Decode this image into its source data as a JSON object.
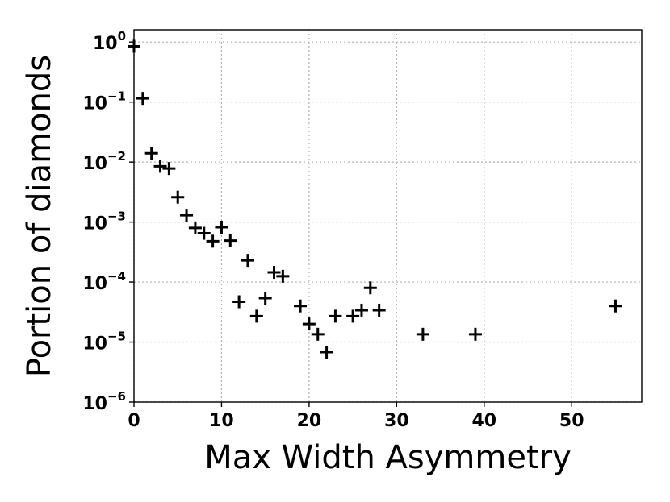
{
  "chart_data": {
    "type": "scatter",
    "title": "",
    "xlabel": "Max Width Asymmetry",
    "ylabel": "Portion of diamonds",
    "xlim": [
      0,
      58
    ],
    "ylim": [
      1e-06,
      1.6
    ],
    "yscale": "log",
    "grid": true,
    "marker": "+",
    "marker_color": "#000000",
    "x_ticks": [
      {
        "value": 0,
        "label": "0"
      },
      {
        "value": 10,
        "label": "10"
      },
      {
        "value": 20,
        "label": "20"
      },
      {
        "value": 30,
        "label": "30"
      },
      {
        "value": 40,
        "label": "40"
      },
      {
        "value": 50,
        "label": "50"
      }
    ],
    "y_ticks": [
      {
        "value": 1,
        "base": "10",
        "exp": "0"
      },
      {
        "value": 0.1,
        "base": "10",
        "exp": "−1"
      },
      {
        "value": 0.01,
        "base": "10",
        "exp": "−2"
      },
      {
        "value": 0.001,
        "base": "10",
        "exp": "−3"
      },
      {
        "value": 0.0001,
        "base": "10",
        "exp": "−4"
      },
      {
        "value": 1e-05,
        "base": "10",
        "exp": "−5"
      },
      {
        "value": 1e-06,
        "base": "10",
        "exp": "−6"
      }
    ],
    "points": [
      {
        "x": 0,
        "y": 0.85
      },
      {
        "x": 1,
        "y": 0.115
      },
      {
        "x": 2,
        "y": 0.014
      },
      {
        "x": 3,
        "y": 0.0085
      },
      {
        "x": 4,
        "y": 0.0078
      },
      {
        "x": 5,
        "y": 0.0026
      },
      {
        "x": 6,
        "y": 0.0013
      },
      {
        "x": 7,
        "y": 0.0008
      },
      {
        "x": 8,
        "y": 0.00065
      },
      {
        "x": 9,
        "y": 0.00048
      },
      {
        "x": 10,
        "y": 0.00082
      },
      {
        "x": 11,
        "y": 0.00049
      },
      {
        "x": 12,
        "y": 4.7e-05
      },
      {
        "x": 13,
        "y": 0.00023
      },
      {
        "x": 14,
        "y": 2.7e-05
      },
      {
        "x": 15,
        "y": 5.4e-05
      },
      {
        "x": 16,
        "y": 0.000145
      },
      {
        "x": 17,
        "y": 0.000125
      },
      {
        "x": 19,
        "y": 4e-05
      },
      {
        "x": 20,
        "y": 2e-05
      },
      {
        "x": 21,
        "y": 1.35e-05
      },
      {
        "x": 22,
        "y": 6.8e-06
      },
      {
        "x": 23,
        "y": 2.7e-05
      },
      {
        "x": 25,
        "y": 2.7e-05
      },
      {
        "x": 26,
        "y": 3.4e-05
      },
      {
        "x": 27,
        "y": 8e-05
      },
      {
        "x": 28,
        "y": 3.4e-05
      },
      {
        "x": 33,
        "y": 1.35e-05
      },
      {
        "x": 39,
        "y": 1.35e-05
      },
      {
        "x": 55,
        "y": 4e-05
      }
    ]
  }
}
